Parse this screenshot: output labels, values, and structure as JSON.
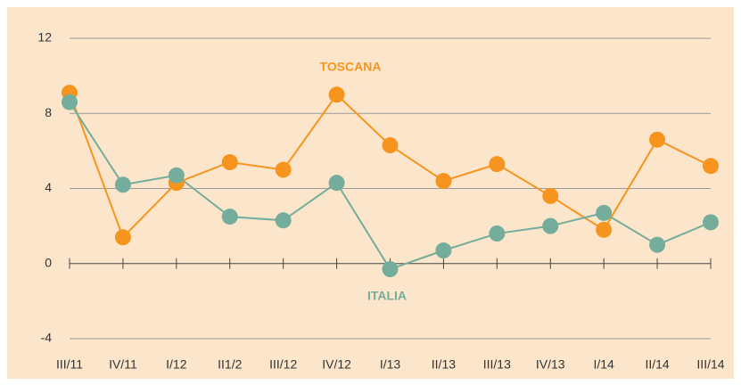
{
  "chart_data": {
    "type": "line",
    "categories": [
      "III/11",
      "IV/11",
      "I/12",
      "II1/2",
      "III/12",
      "IV/12",
      "I/13",
      "II/13",
      "III/13",
      "IV/13",
      "I/14",
      "II/14",
      "III/14"
    ],
    "series": [
      {
        "name": "TOSCANA",
        "color": "#f7941d",
        "values": [
          9.1,
          1.4,
          4.3,
          5.4,
          5.0,
          9.0,
          6.3,
          4.4,
          5.3,
          3.6,
          1.8,
          6.6,
          5.2
        ]
      },
      {
        "name": "ITALIA",
        "color": "#74ad9b",
        "values": [
          8.6,
          4.2,
          4.7,
          2.5,
          2.3,
          4.3,
          -0.3,
          0.7,
          1.6,
          2.0,
          2.7,
          1.0,
          2.2
        ]
      }
    ],
    "ylim": [
      -4,
      12
    ],
    "yticks": [
      -4,
      0,
      4,
      8,
      12
    ],
    "grid": true
  }
}
